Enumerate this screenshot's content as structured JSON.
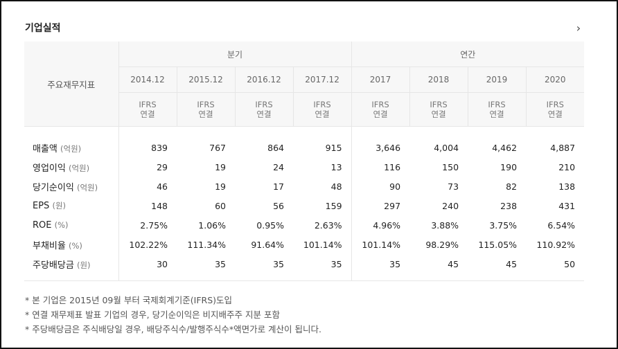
{
  "section": {
    "title": "기업실적",
    "more_icon": "›"
  },
  "table": {
    "corner_label": "주요재무지표",
    "group_quarterly": "분기",
    "group_annual": "연간",
    "periods": [
      "2014.12",
      "2015.12",
      "2016.12",
      "2017.12",
      "2017",
      "2018",
      "2019",
      "2020"
    ],
    "basis_line1": "IFRS",
    "basis_line2": "연결",
    "rows": [
      {
        "label": "매출액",
        "unit": "(억원)",
        "values": [
          "839",
          "767",
          "864",
          "915",
          "3,646",
          "4,004",
          "4,462",
          "4,887"
        ]
      },
      {
        "label": "영업이익",
        "unit": "(억원)",
        "values": [
          "29",
          "19",
          "24",
          "13",
          "116",
          "150",
          "190",
          "210"
        ]
      },
      {
        "label": "당기순이익",
        "unit": "(억원)",
        "values": [
          "46",
          "19",
          "17",
          "48",
          "90",
          "73",
          "82",
          "138"
        ]
      },
      {
        "label": "EPS",
        "unit": "(원)",
        "values": [
          "148",
          "60",
          "56",
          "159",
          "297",
          "240",
          "238",
          "431"
        ]
      },
      {
        "label": "ROE",
        "unit": "(%)",
        "values": [
          "2.75%",
          "1.06%",
          "0.95%",
          "2.63%",
          "4.96%",
          "3.88%",
          "3.75%",
          "6.54%"
        ]
      },
      {
        "label": "부채비율",
        "unit": "(%)",
        "values": [
          "102.22%",
          "111.34%",
          "91.64%",
          "101.14%",
          "101.14%",
          "98.29%",
          "115.05%",
          "110.92%"
        ]
      },
      {
        "label": "주당배당금",
        "unit": "(원)",
        "values": [
          "30",
          "35",
          "35",
          "35",
          "35",
          "45",
          "45",
          "50"
        ]
      }
    ]
  },
  "notes": [
    "* 본 기업은 2015년 09월 부터 국제회계기준(IFRS)도입",
    "* 연결 재무제표 발표 기업의 경우, 당기순이익은 비지배주주 지분 포함",
    "* 주당배당금은 주식배당일 경우, 배당주식수/발행주식수*액면가로 계산이 됩니다."
  ]
}
